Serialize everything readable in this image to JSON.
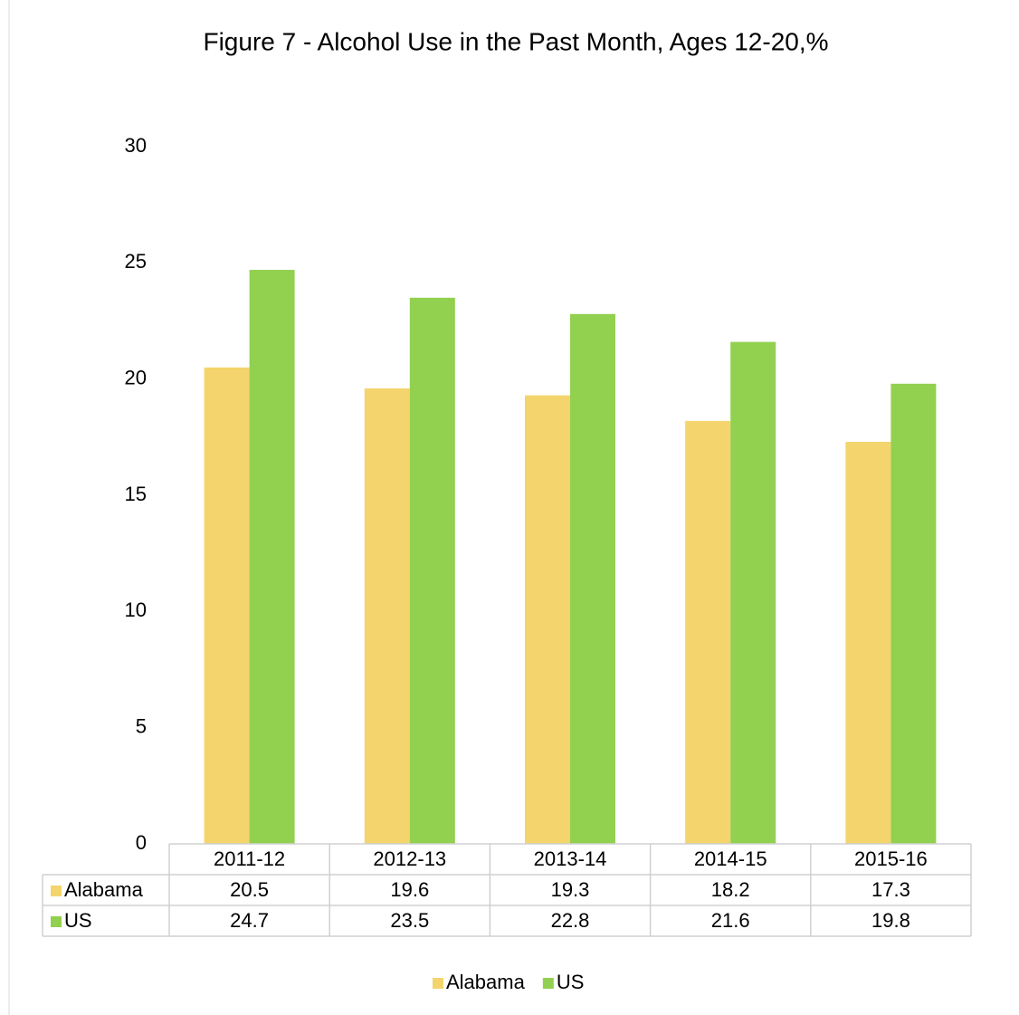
{
  "chart_data": {
    "type": "bar",
    "title": "Figure 7 - Alcohol Use in the Past Month, Ages 12-20,%",
    "categories": [
      "2011-12",
      "2012-13",
      "2013-14",
      "2014-15",
      "2015-16"
    ],
    "series": [
      {
        "name": "Alabama",
        "color": "#f4d46c",
        "values": [
          20.5,
          19.6,
          19.3,
          18.2,
          17.3
        ]
      },
      {
        "name": "US",
        "color": "#92d050",
        "values": [
          24.7,
          23.5,
          22.8,
          21.6,
          19.8
        ]
      }
    ],
    "ylim": [
      0,
      30
    ],
    "yticks": [
      0,
      5,
      10,
      15,
      20,
      25,
      30
    ],
    "grid": false,
    "legend": "bottom"
  }
}
